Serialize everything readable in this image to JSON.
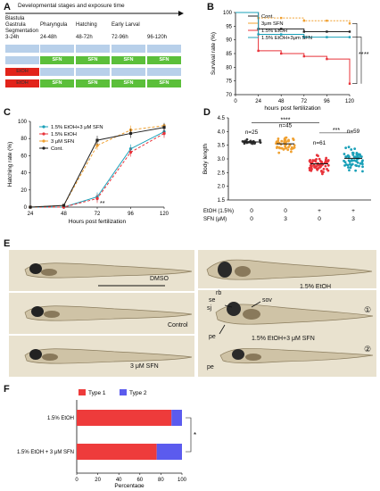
{
  "panelA": {
    "letter": "A",
    "title": "Developmental stages and exposure time",
    "stages": [
      {
        "name": "Blastula\nGastrula\nSegmentation",
        "range": "3-24h"
      },
      {
        "name": "Pharyngula",
        "range": "24-48h"
      },
      {
        "name": "Hatching",
        "range": "48-72h"
      },
      {
        "name": "Early Larval",
        "range": "72-96h"
      },
      {
        "name": "",
        "range": "96-120h"
      }
    ],
    "rows": [
      {
        "cells": [
          "",
          "",
          "",
          "",
          ""
        ]
      },
      {
        "cells": [
          "",
          "SFN",
          "SFN",
          "SFN",
          "SFN"
        ]
      },
      {
        "cells": [
          "EtOH",
          "",
          "",
          "",
          ""
        ]
      },
      {
        "cells": [
          "EtOH",
          "SFN",
          "SFN",
          "SFN",
          "SFN"
        ]
      }
    ]
  },
  "panelB": {
    "letter": "B",
    "colors": {
      "cont": "#222222",
      "sfn": "#f0a030",
      "etoh": "#e8333a",
      "combo": "#1aa0b8"
    },
    "chart_data": {
      "type": "line",
      "title": "",
      "xlabel": "hours post fertilization",
      "ylabel": "Survival rate (%)",
      "x": [
        0,
        24,
        48,
        72,
        96,
        120
      ],
      "ylim": [
        70,
        100
      ],
      "yticks": [
        70,
        75,
        80,
        85,
        90,
        95,
        100
      ],
      "series": [
        {
          "name": "Cont.",
          "values": [
            100,
            94,
            94,
            93,
            93,
            93
          ]
        },
        {
          "name": "3μm SFN",
          "values": [
            100,
            98,
            98,
            97,
            97,
            96
          ]
        },
        {
          "name": "1.5% EtOH",
          "values": [
            100,
            86,
            85,
            84,
            83,
            74
          ]
        },
        {
          "name": "1.5% EtOH+3μm SFN",
          "values": [
            100,
            92,
            92,
            91,
            91,
            91
          ]
        }
      ],
      "annotations": [
        "**",
        "**"
      ]
    }
  },
  "panelC": {
    "letter": "C",
    "chart_data": {
      "type": "line",
      "title": "",
      "xlabel": "Hours post fertilization",
      "ylabel": "Hatching rate (%)",
      "x": [
        24,
        48,
        72,
        96,
        120
      ],
      "ylim": [
        0,
        100
      ],
      "yticks": [
        0,
        20,
        40,
        60,
        80,
        100
      ],
      "series": [
        {
          "name": "1.5% EtOH+3 μM SFN",
          "values": [
            0,
            0,
            12,
            68,
            88
          ]
        },
        {
          "name": "1.5% EtOH",
          "values": [
            0,
            0,
            10,
            64,
            86
          ]
        },
        {
          "name": "3 μM SFN",
          "values": [
            0,
            2,
            72,
            90,
            95
          ]
        },
        {
          "name": "Cont.",
          "values": [
            0,
            2,
            78,
            86,
            93
          ]
        }
      ],
      "annotations": [
        "**"
      ]
    }
  },
  "panelD": {
    "letter": "D",
    "chart_data": {
      "type": "scatter",
      "title": "",
      "ylabel": "Body length",
      "ylim": [
        1.5,
        4.5
      ],
      "yticks": [
        1.5,
        2.0,
        2.5,
        3.0,
        3.5,
        4.0,
        4.5
      ],
      "groups": [
        {
          "n": "n=25",
          "mean": 3.62,
          "sd": 0.05
        },
        {
          "n": "n=45",
          "mean": 3.55,
          "sd": 0.15
        },
        {
          "n": "n=61",
          "mean": 2.82,
          "sd": 0.18
        },
        {
          "n": "n=59",
          "mean": 3.02,
          "sd": 0.25
        }
      ],
      "row_labels": [
        "EtOH (1.5%)",
        "SFN (μM)"
      ],
      "etoh_values": [
        "0",
        "0",
        "+",
        "+"
      ],
      "sfn_values": [
        "0",
        "3",
        "0",
        "3"
      ],
      "annotations": [
        "****",
        "***"
      ]
    }
  },
  "panelE": {
    "letter": "E",
    "labels": {
      "dmso": "DMSO",
      "etoh": "1.5% EtOH",
      "control": "Control",
      "combo": "1.5% EtOH+3 μM SFN",
      "sfn": "3 μM SFN",
      "rb": "rb",
      "se": "se",
      "sj": "sj",
      "sov": "sov",
      "pe": "pe",
      "pe2": "pe",
      "c1": "①",
      "c2": "②"
    }
  },
  "panelF": {
    "letter": "F",
    "chart_data": {
      "type": "bar",
      "title": "",
      "xlabel": "Percentage",
      "categories": [
        "1.5% EtOH",
        "1.5% EtOH + 3 μM SFN"
      ],
      "series": [
        {
          "name": "Type 1",
          "values": [
            90,
            76
          ]
        },
        {
          "name": "Type 2",
          "values": [
            10,
            24
          ]
        }
      ],
      "xticks": [
        0,
        20,
        40,
        60,
        80,
        100
      ],
      "annotations": [
        "*"
      ]
    },
    "colors": {
      "type1": "#ee3b3b",
      "type2": "#5b5bee"
    }
  }
}
